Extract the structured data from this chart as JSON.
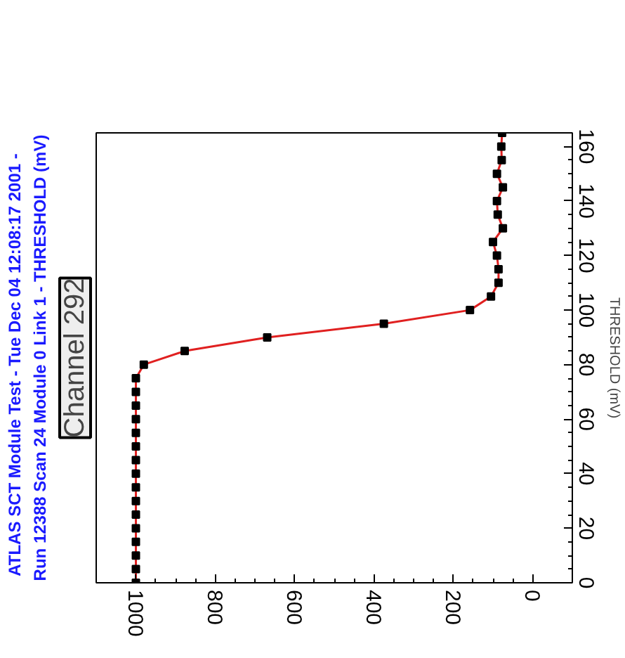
{
  "chart_data": {
    "type": "line",
    "title": "ATLAS SCT Module Test  -  Tue Dec 04 12:08:17 2001  -",
    "subtitle": "Run 12388 Scan 24 Module 0 Link 1 - THRESHOLD (mV)",
    "ylabel": "THRESHOLD (mV)",
    "annotations": [
      "Channel 292"
    ],
    "x": [
      1000,
      1000,
      1000,
      1000,
      1000,
      1000,
      1000,
      1000,
      1000,
      1000,
      1000,
      1000,
      1000,
      1000,
      1000,
      1000,
      980,
      877,
      669,
      375,
      158,
      105,
      86,
      86,
      90,
      100,
      75,
      88,
      90,
      75,
      90,
      78,
      79,
      77
    ],
    "series": [
      {
        "color": "#e02020",
        "values": [
          0,
          5,
          10,
          15,
          20,
          25,
          30,
          35,
          40,
          45,
          50,
          55,
          60,
          65,
          70,
          75,
          80,
          85,
          90,
          95,
          100,
          105,
          110,
          115,
          120,
          125,
          130,
          135,
          140,
          145,
          150,
          155,
          160,
          165
        ]
      }
    ],
    "xlim": [
      1100,
      -100
    ],
    "xticks": [
      0,
      200,
      400,
      600,
      800,
      1000
    ],
    "ylim": [
      0,
      165
    ],
    "yticks": [
      0,
      20,
      40,
      60,
      80,
      100,
      120,
      140,
      160
    ],
    "grid": false,
    "marker": "square",
    "line_style": "solid"
  }
}
